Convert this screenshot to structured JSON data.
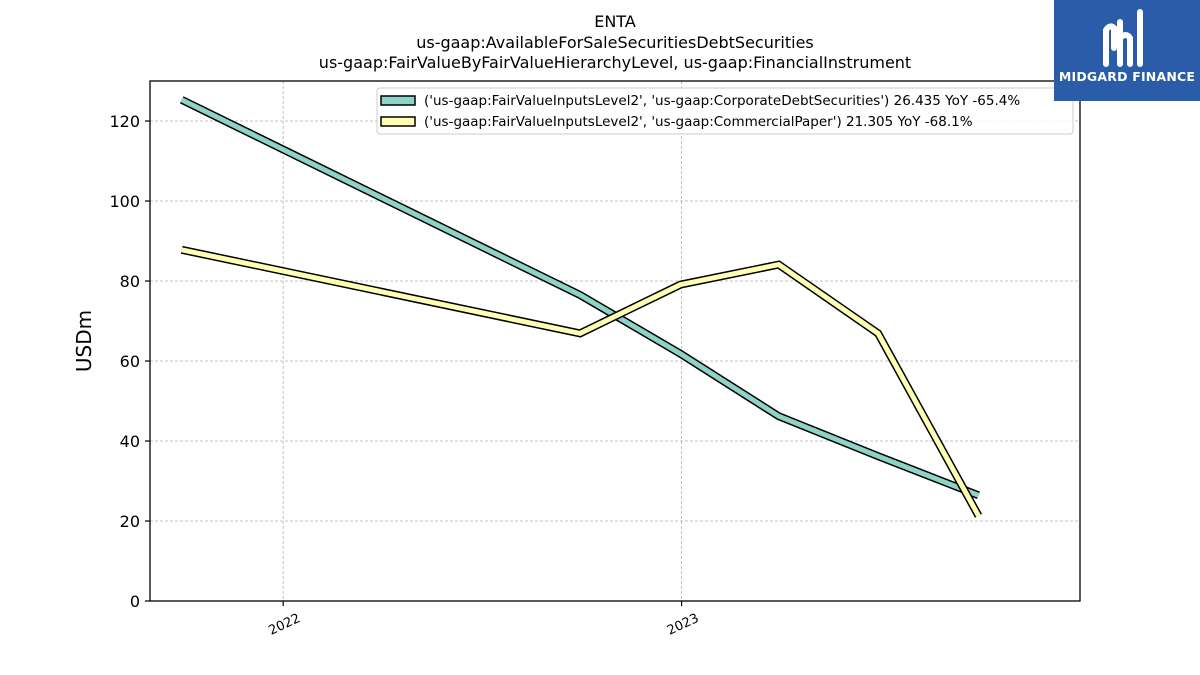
{
  "chart_data": {
    "type": "line",
    "title_lines": [
      "ENTA",
      "us-gaap:AvailableForSaleSecuritiesDebtSecurities",
      "us-gaap:FairValueByFairValueHierarchyLevel, us-gaap:FinancialInstrument"
    ],
    "ylabel": "USDm",
    "xlabel": "",
    "ylim": [
      0,
      130
    ],
    "yticks": [
      0,
      20,
      40,
      60,
      80,
      100,
      120
    ],
    "xlim": [
      "2021-09-01",
      "2024-01-01"
    ],
    "xticks": [
      {
        "date": "2022-01-01",
        "label": "2022"
      },
      {
        "date": "2023-01-01",
        "label": "2023"
      }
    ],
    "grid": true,
    "legend_position": "top-right",
    "series": [
      {
        "name": "('us-gaap:FairValueInputsLevel2', 'us-gaap:CorporateDebtSecurities') 26.435 YoY -65.4%",
        "color": "#8dd3c7",
        "points": [
          {
            "x": "2021-09-30",
            "y": 125.3
          },
          {
            "x": "2022-09-30",
            "y": 76.5
          },
          {
            "x": "2022-12-31",
            "y": 61.8
          },
          {
            "x": "2023-03-31",
            "y": 46.2
          },
          {
            "x": "2023-06-30",
            "y": 36.2
          },
          {
            "x": "2023-09-30",
            "y": 26.435
          }
        ]
      },
      {
        "name": "('us-gaap:FairValueInputsLevel2', 'us-gaap:CommercialPaper') 21.305 YoY -68.1%",
        "color": "#ffffb3",
        "points": [
          {
            "x": "2021-09-30",
            "y": 87.8
          },
          {
            "x": "2022-09-30",
            "y": 66.9
          },
          {
            "x": "2022-12-31",
            "y": 79.1
          },
          {
            "x": "2023-03-31",
            "y": 84.1
          },
          {
            "x": "2023-06-30",
            "y": 66.9
          },
          {
            "x": "2023-09-30",
            "y": 21.305
          }
        ]
      }
    ]
  },
  "branding": {
    "logo_text": "MIDGARD FINANCE",
    "logo_color": "#2a5caa"
  }
}
